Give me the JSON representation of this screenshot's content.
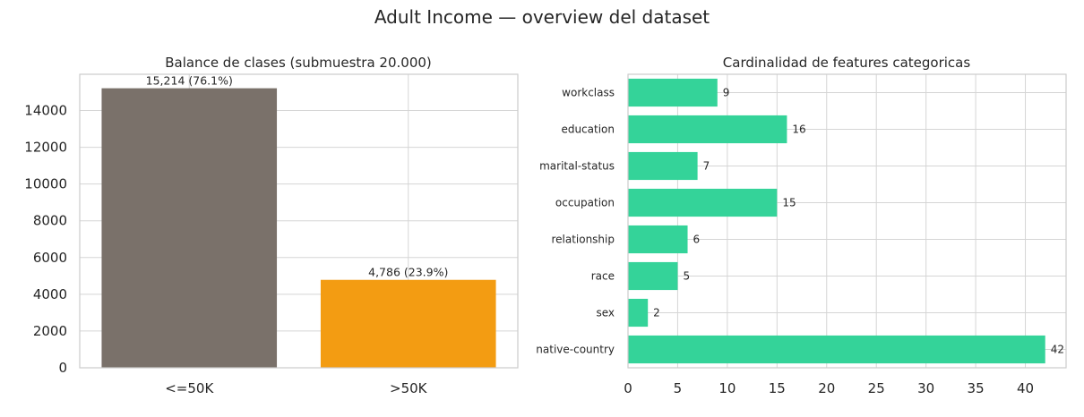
{
  "figure": {
    "title": "Adult Income — overview del dataset"
  },
  "chart_data": [
    {
      "type": "bar",
      "title": "Balance de clases (submuestra 20.000)",
      "categories": [
        "<=50K",
        ">50K"
      ],
      "values": [
        15214,
        4786
      ],
      "data_labels": [
        "15,214 (76.1%)",
        "4,786 (23.9%)"
      ],
      "colors": [
        "#7a716a",
        "#f39c12"
      ],
      "ylim": [
        0,
        15975
      ],
      "yticks": [
        0,
        2000,
        4000,
        6000,
        8000,
        10000,
        12000,
        14000
      ],
      "grid": true
    },
    {
      "type": "bar",
      "orientation": "horizontal",
      "title": "Cardinalidad de features categoricas",
      "categories": [
        "workclass",
        "education",
        "marital-status",
        "occupation",
        "relationship",
        "race",
        "sex",
        "native-country"
      ],
      "values": [
        9,
        16,
        7,
        15,
        6,
        5,
        2,
        42
      ],
      "color": "#34d399",
      "xlim": [
        0,
        44.1
      ],
      "xticks": [
        0,
        5,
        10,
        15,
        20,
        25,
        30,
        35,
        40
      ],
      "grid": true
    }
  ]
}
